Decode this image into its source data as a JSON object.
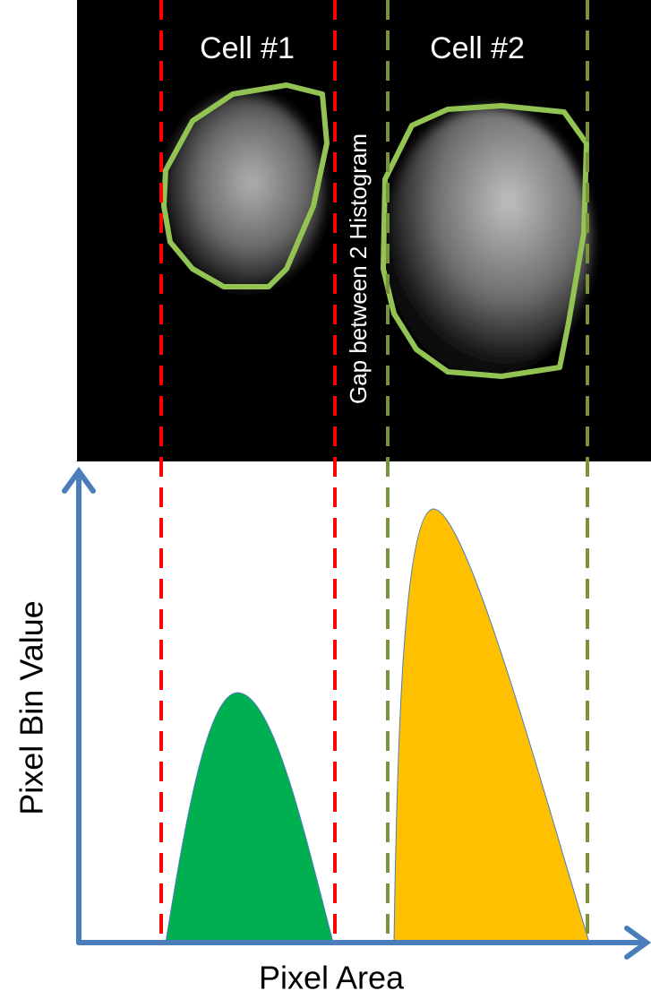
{
  "labels": {
    "cell_1": "Cell #1",
    "cell_2": "Cell #2",
    "gap": "Gap between 2 Histogram"
  },
  "axes": {
    "y_title": "Pixel Bin Value",
    "x_title": "Pixel Area"
  }
}
